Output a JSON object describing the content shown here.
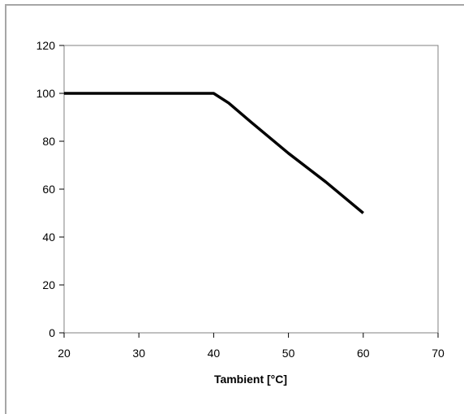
{
  "chart_data": {
    "type": "line",
    "title": "",
    "xlabel": "Tambient [°C]",
    "ylabel": "",
    "xlim": [
      20,
      70
    ],
    "ylim": [
      0,
      120
    ],
    "xticks": [
      20,
      30,
      40,
      50,
      60,
      70
    ],
    "yticks": [
      0,
      20,
      40,
      60,
      80,
      100,
      120
    ],
    "grid": false,
    "legend": "none",
    "colors": {
      "line": "#000000",
      "axis": "#808080",
      "frame": "#a6a6a6"
    },
    "series": [
      {
        "x": [
          20,
          40,
          42,
          45,
          50,
          55,
          60
        ],
        "y": [
          100,
          100,
          96,
          88,
          75,
          63,
          50
        ]
      }
    ]
  }
}
